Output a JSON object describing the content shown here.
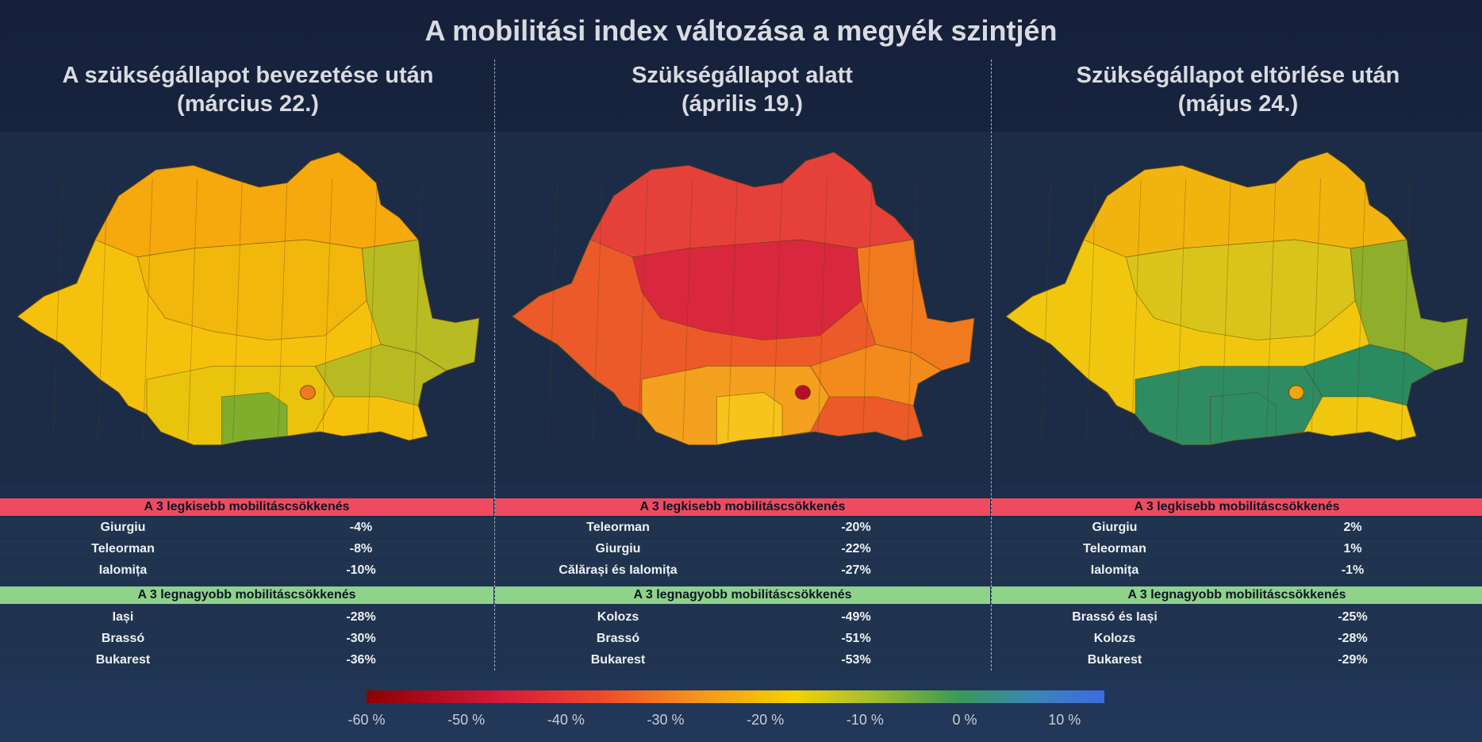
{
  "title": "A mobilitási index változása a megyék szintjén",
  "panels": [
    {
      "subtitle_line1": "A szükségállapot bevezetése után",
      "subtitle_line2": "(március 22.)",
      "least_header": "A 3 legkisebb  mobilitáscsökkenés",
      "least": [
        {
          "name": "Giurgiu",
          "value": "-4%"
        },
        {
          "name": "Teleorman",
          "value": "-8%"
        },
        {
          "name": "Ialomița",
          "value": "-10%"
        }
      ],
      "most_header": "A 3 legnagyobb  mobilitáscsökkenés",
      "most": [
        {
          "name": "Iași",
          "value": "-28%"
        },
        {
          "name": "Brassó",
          "value": "-30%"
        },
        {
          "name": "Bukarest",
          "value": "-36%"
        }
      ],
      "map_colors": {
        "base": "#f6c10c",
        "north": "#f5a90d",
        "center": "#f1b70b",
        "south": "#eac30d",
        "southeast": "#b9ba22",
        "east": "#b8bb22",
        "giurgiu": "#7fae2d",
        "bucharest": "#ee7a1f"
      }
    },
    {
      "subtitle_line1": "Szükségállapot alatt",
      "subtitle_line2": "(április 19.)",
      "least_header": "A 3 legkisebb  mobilitáscsökkenés",
      "least": [
        {
          "name": "Teleorman",
          "value": "-20%"
        },
        {
          "name": "Giurgiu",
          "value": "-22%"
        },
        {
          "name": "Călărași  és Ialomița",
          "value": "-27%"
        }
      ],
      "most_header": "A 3 legnagyobb  mobilitáscsökkenés",
      "most": [
        {
          "name": "Kolozs",
          "value": "-49%"
        },
        {
          "name": "Brassó",
          "value": "-51%"
        },
        {
          "name": "Bukarest",
          "value": "-53%"
        }
      ],
      "map_colors": {
        "base": "#ec5a2a",
        "north": "#e5413a",
        "center": "#d9283e",
        "south": "#f3a11e",
        "southeast": "#f28a1c",
        "east": "#f07b1f",
        "giurgiu": "#f6c41a",
        "bucharest": "#b80d2a"
      }
    },
    {
      "subtitle_line1": "Szükségállapot eltörlése után",
      "subtitle_line2": "(május 24.)",
      "least_header": "A 3 legkisebb  mobilitáscsökkenés",
      "least": [
        {
          "name": "Giurgiu",
          "value": "2%"
        },
        {
          "name": "Teleorman",
          "value": "1%"
        },
        {
          "name": "Ialomița",
          "value": "-1%"
        }
      ],
      "most_header": "A 3 legnagyobb  mobilitáscsökkenés",
      "most": [
        {
          "name": "Brassó és Iași",
          "value": "-25%"
        },
        {
          "name": "Kolozs",
          "value": "-28%"
        },
        {
          "name": "Bukarest",
          "value": "-29%"
        }
      ],
      "map_colors": {
        "base": "#f0c70e",
        "north": "#f1b40e",
        "center": "#d9c419",
        "south": "#2f8c62",
        "southeast": "#2a8a60",
        "east": "#8fae2c",
        "giurgiu": "#2e8c63",
        "bucharest": "#f5a30f"
      }
    }
  ],
  "legend": {
    "ticks": [
      "-60 %",
      "-50 %",
      "-40 %",
      "-30 %",
      "-20 %",
      "-10 %",
      "0 %",
      "10 %"
    ],
    "range": [
      -60,
      14
    ]
  }
}
